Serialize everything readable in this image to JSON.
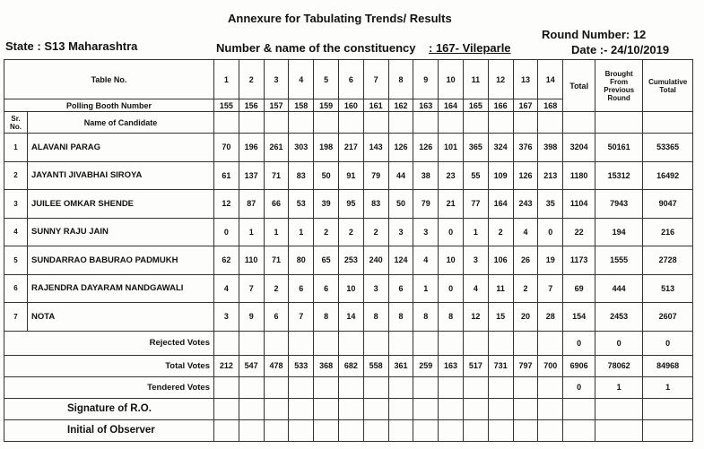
{
  "header": {
    "title": "Annexure for Tabulating Trends/ Results",
    "state": "State : S13 Maharashtra",
    "constituency_label": "Number & name of the constituency",
    "constituency": ": 167- Vileparle",
    "round": "Round Number:  12",
    "date": "Date :- 24/10/2019"
  },
  "table": {
    "table_no_label": "Table No.",
    "table_nos": [
      "1",
      "2",
      "3",
      "4",
      "5",
      "6",
      "7",
      "8",
      "9",
      "10",
      "11",
      "12",
      "13",
      "14"
    ],
    "total_label": "Total",
    "brought_label": "Brought From Previous Round",
    "cumulative_label": "Cumulative Total",
    "booth_label": "Polling Booth Number",
    "booths": [
      "155",
      "156",
      "157",
      "158",
      "159",
      "160",
      "161",
      "162",
      "163",
      "164",
      "165",
      "166",
      "167",
      "168"
    ],
    "sr_label": "Sr. No.",
    "name_label": "Name of Candidate",
    "rows": [
      {
        "sr": "1",
        "name": "ALAVANI PARAG",
        "votes": [
          70,
          196,
          261,
          303,
          198,
          217,
          143,
          126,
          126,
          101,
          365,
          324,
          376,
          398
        ],
        "total": 3204,
        "brought": 50161,
        "cumulative": 53365
      },
      {
        "sr": "2",
        "name": "JAYANTI JIVABHAI SIROYA",
        "votes": [
          61,
          137,
          71,
          83,
          50,
          91,
          79,
          44,
          38,
          23,
          55,
          109,
          126,
          213
        ],
        "total": 1180,
        "brought": 15312,
        "cumulative": 16492
      },
      {
        "sr": "3",
        "name": "JUILEE OMKAR SHENDE",
        "votes": [
          12,
          87,
          66,
          53,
          39,
          95,
          83,
          50,
          79,
          21,
          77,
          164,
          243,
          35
        ],
        "total": 1104,
        "brought": 7943,
        "cumulative": 9047
      },
      {
        "sr": "4",
        "name": "SUNNY RAJU JAIN",
        "votes": [
          0,
          1,
          1,
          1,
          2,
          2,
          2,
          3,
          3,
          0,
          1,
          2,
          4,
          0
        ],
        "total": 22,
        "brought": 194,
        "cumulative": 216
      },
      {
        "sr": "5",
        "name": "SUNDARRAO BABURAO PADMUKH",
        "votes": [
          62,
          110,
          71,
          80,
          65,
          253,
          240,
          124,
          4,
          10,
          3,
          106,
          26,
          19
        ],
        "total": 1173,
        "brought": 1555,
        "cumulative": 2728
      },
      {
        "sr": "6",
        "name": "RAJENDRA DAYARAM NANDGAWALI",
        "votes": [
          4,
          7,
          2,
          6,
          6,
          10,
          3,
          6,
          1,
          0,
          4,
          11,
          2,
          7
        ],
        "total": 69,
        "brought": 444,
        "cumulative": 513
      },
      {
        "sr": "7",
        "name": "NOTA",
        "votes": [
          3,
          9,
          6,
          7,
          8,
          14,
          8,
          8,
          8,
          8,
          12,
          15,
          20,
          28
        ],
        "total": 154,
        "brought": 2453,
        "cumulative": 2607
      }
    ],
    "rejected": {
      "label": "Rejected Votes",
      "total": 0,
      "brought": 0,
      "cumulative": 0
    },
    "total_votes": {
      "label": "Total Votes",
      "votes": [
        212,
        547,
        478,
        533,
        368,
        682,
        558,
        361,
        259,
        163,
        517,
        731,
        797,
        700
      ],
      "total": 6906,
      "brought": 78062,
      "cumulative": 84968
    },
    "tendered": {
      "label": "Tendered Votes",
      "total": 0,
      "brought": 1,
      "cumulative": 1
    },
    "signature": "Signature of R.O.",
    "initial": "Initial of Observer"
  }
}
